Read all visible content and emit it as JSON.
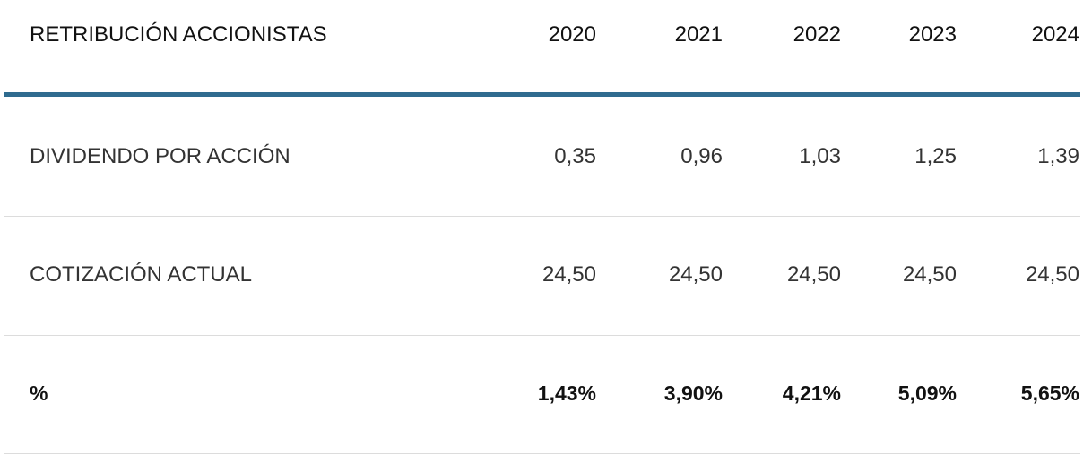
{
  "table": {
    "header": [
      "RETRIBUCIÓN ACCIONISTAS",
      "2020",
      "2021",
      "2022",
      "2023",
      "2024"
    ],
    "rows": [
      [
        "DIVIDENDO POR ACCIÓN",
        "0,35",
        "0,96",
        "1,03",
        "1,25",
        "1,39"
      ],
      [
        "COTIZACIÓN ACTUAL",
        "24,50",
        "24,50",
        "24,50",
        "24,50",
        "24,50"
      ],
      [
        "%",
        "1,43%",
        "3,90%",
        "4,21%",
        "5,09%",
        "5,65%"
      ]
    ]
  }
}
